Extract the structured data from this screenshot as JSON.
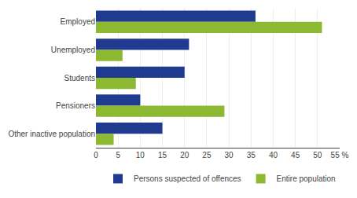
{
  "chart_data": {
    "type": "bar",
    "orientation": "horizontal",
    "categories": [
      "Employed",
      "Unemployed",
      "Students",
      "Pensioners",
      "Other inactive population"
    ],
    "series": [
      {
        "name": "Persons suspected of offences",
        "color": "#1f3a8f",
        "values": [
          36,
          21,
          20,
          10,
          15
        ]
      },
      {
        "name": "Entire population",
        "color": "#8db832",
        "values": [
          51,
          6,
          9,
          29,
          4
        ]
      }
    ],
    "xlim": [
      0,
      55
    ],
    "xticks": [
      0,
      5,
      10,
      15,
      20,
      25,
      30,
      35,
      40,
      45,
      50,
      {
        "value": 55,
        "label": "55 %"
      }
    ],
    "grid": true,
    "legend": "lower right"
  }
}
